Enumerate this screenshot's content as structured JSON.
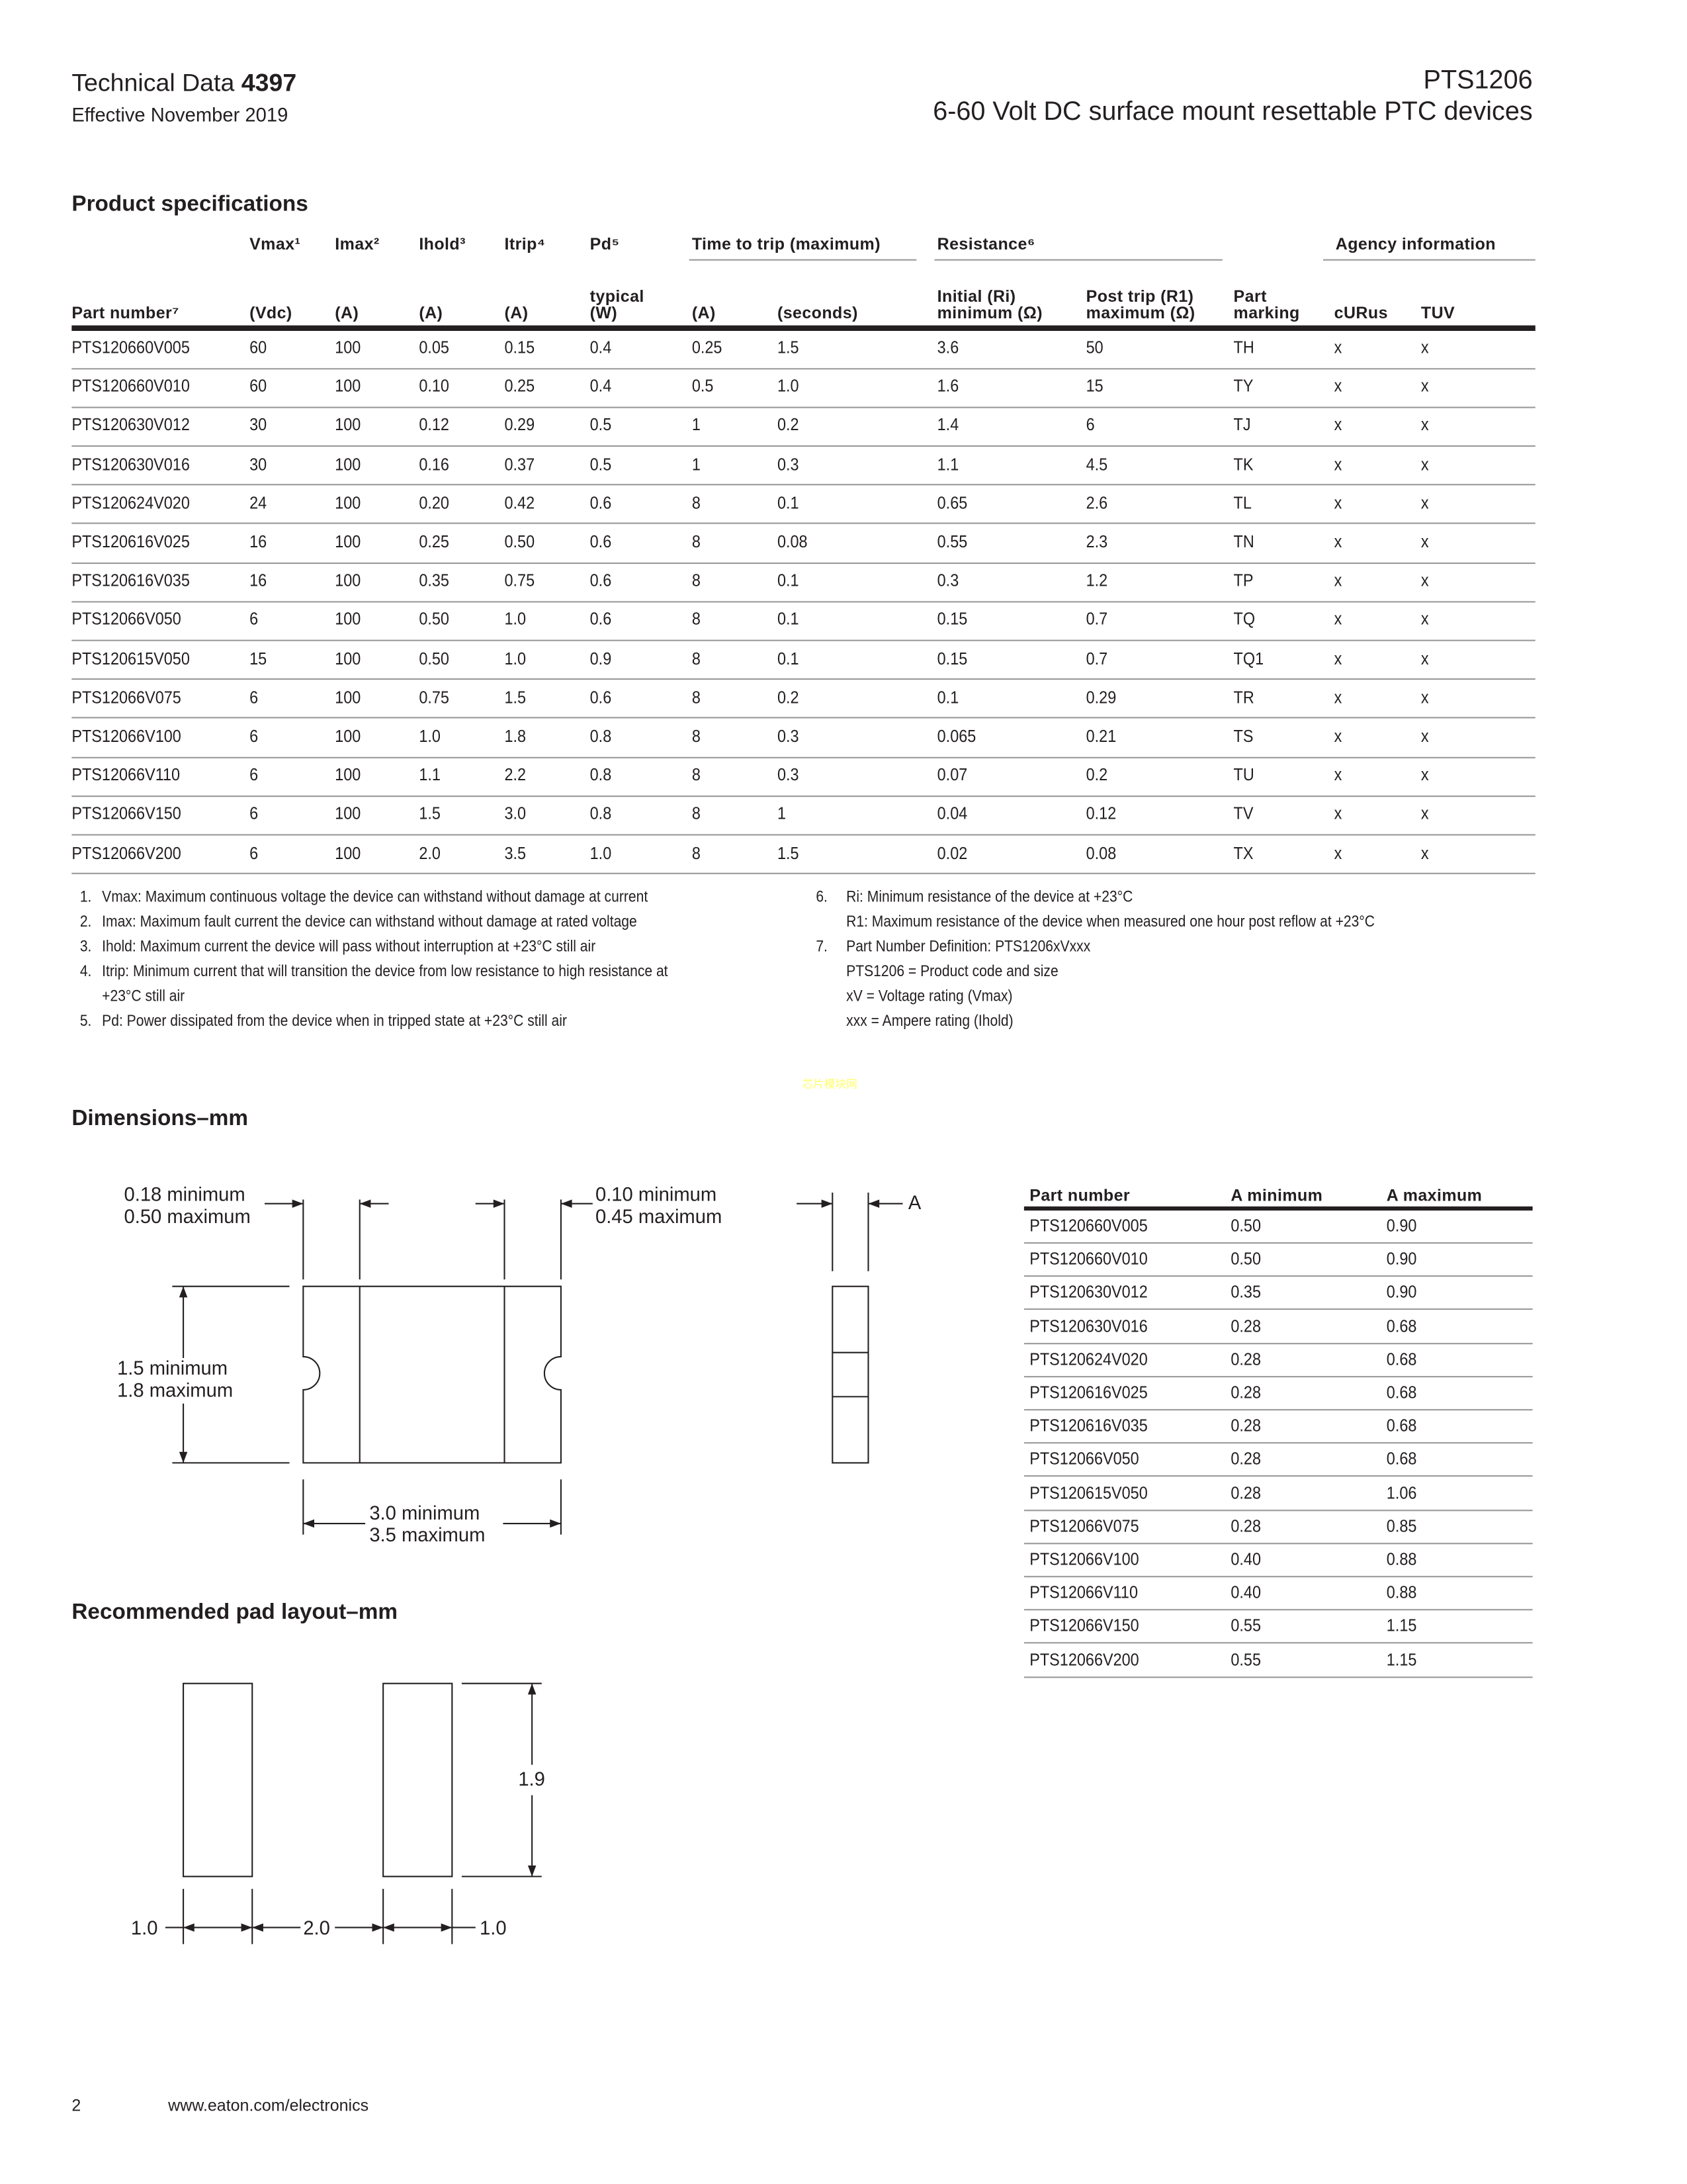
{
  "header": {
    "doc_type": "Technical Data",
    "doc_number": "4397",
    "effective": "Effective November 2019",
    "product": "PTS1206",
    "subtitle": "6-60 Volt DC surface mount resettable PTC devices"
  },
  "specs": {
    "title": "Product specifications",
    "group_headers": {
      "vmax": "Vmax¹",
      "imax": "Imax²",
      "ihold": "Ihold³",
      "itrip": "Itrip⁴",
      "pd": "Pd⁵",
      "time_to_trip": "Time to trip (maximum)",
      "resistance": "Resistance⁶",
      "agency": "Agency information"
    },
    "col_headers": {
      "part": "Part number⁷",
      "vdc": "(Vdc)",
      "imax": "(A)",
      "ihold": "(A)",
      "itrip": "(A)",
      "pd_top": "typical",
      "pd": "(W)",
      "ttt_a": "(A)",
      "ttt_s": "(seconds)",
      "ri_top": "Initial (Ri)",
      "ri": "minimum (Ω)",
      "r1_top": "Post trip (R1)",
      "r1": "maximum (Ω)",
      "mark_top": "Part",
      "mark": "marking",
      "curus": "cURus",
      "tuv": "TUV"
    },
    "rows": [
      [
        "PTS120660V005",
        "60",
        "100",
        "0.05",
        "0.15",
        "0.4",
        "0.25",
        "1.5",
        "3.6",
        "50",
        "TH",
        "x",
        "x"
      ],
      [
        "PTS120660V010",
        "60",
        "100",
        "0.10",
        "0.25",
        "0.4",
        "0.5",
        "1.0",
        "1.6",
        "15",
        "TY",
        "x",
        "x"
      ],
      [
        "PTS120630V012",
        "30",
        "100",
        "0.12",
        "0.29",
        "0.5",
        "1",
        "0.2",
        "1.4",
        "6",
        "TJ",
        "x",
        "x"
      ],
      [
        "PTS120630V016",
        "30",
        "100",
        "0.16",
        "0.37",
        "0.5",
        "1",
        "0.3",
        "1.1",
        "4.5",
        "TK",
        "x",
        "x"
      ],
      [
        "PTS120624V020",
        "24",
        "100",
        "0.20",
        "0.42",
        "0.6",
        "8",
        "0.1",
        "0.65",
        "2.6",
        "TL",
        "x",
        "x"
      ],
      [
        "PTS120616V025",
        "16",
        "100",
        "0.25",
        "0.50",
        "0.6",
        "8",
        "0.08",
        "0.55",
        "2.3",
        "TN",
        "x",
        "x"
      ],
      [
        "PTS120616V035",
        "16",
        "100",
        "0.35",
        "0.75",
        "0.6",
        "8",
        "0.1",
        "0.3",
        "1.2",
        "TP",
        "x",
        "x"
      ],
      [
        "PTS12066V050",
        "6",
        "100",
        "0.50",
        "1.0",
        "0.6",
        "8",
        "0.1",
        "0.15",
        "0.7",
        "TQ",
        "x",
        "x"
      ],
      [
        "PTS120615V050",
        "15",
        "100",
        "0.50",
        "1.0",
        "0.9",
        "8",
        "0.1",
        "0.15",
        "0.7",
        "TQ1",
        "x",
        "x"
      ],
      [
        "PTS12066V075",
        "6",
        "100",
        "0.75",
        "1.5",
        "0.6",
        "8",
        "0.2",
        "0.1",
        "0.29",
        "TR",
        "x",
        "x"
      ],
      [
        "PTS12066V100",
        "6",
        "100",
        "1.0",
        "1.8",
        "0.8",
        "8",
        "0.3",
        "0.065",
        "0.21",
        "TS",
        "x",
        "x"
      ],
      [
        "PTS12066V110",
        "6",
        "100",
        "1.1",
        "2.2",
        "0.8",
        "8",
        "0.3",
        "0.07",
        "0.2",
        "TU",
        "x",
        "x"
      ],
      [
        "PTS12066V150",
        "6",
        "100",
        "1.5",
        "3.0",
        "0.8",
        "8",
        "1",
        "0.04",
        "0.12",
        "TV",
        "x",
        "x"
      ],
      [
        "PTS12066V200",
        "6",
        "100",
        "2.0",
        "3.5",
        "1.0",
        "8",
        "1.5",
        "0.02",
        "0.08",
        "TX",
        "x",
        "x"
      ]
    ],
    "notes_left": [
      {
        "n": "1.",
        "t": "Vmax: Maximum continuous voltage the device can withstand without damage at current"
      },
      {
        "n": "2.",
        "t": "Imax: Maximum fault current the device can withstand without damage at rated voltage"
      },
      {
        "n": "3.",
        "t": "Ihold: Maximum current the device will pass without interruption at +23°C still air"
      },
      {
        "n": "4.",
        "t": "Itrip: Minimum current that will transition the device from low resistance to high resistance at"
      },
      {
        "n": "",
        "t": "+23°C still air"
      },
      {
        "n": "5.",
        "t": "Pd: Power dissipated from the device when in tripped state at +23°C still air"
      }
    ],
    "notes_right": [
      {
        "n": "6.",
        "t": "Ri: Minimum resistance of the device at +23°C"
      },
      {
        "n": "",
        "t": "R1: Maximum resistance of the device when measured one hour post reflow at +23°C"
      },
      {
        "n": "7.",
        "t": "Part Number Definition: PTS1206xVxxx"
      },
      {
        "n": "",
        "t": "PTS1206 = Product code and size"
      },
      {
        "n": "",
        "t": "xV = Voltage rating (Vmax)"
      },
      {
        "n": "",
        "t": "xxx = Ampere rating (Ihold)"
      }
    ]
  },
  "watermark": "芯片模块网",
  "dimensions": {
    "title": "Dimensions–mm",
    "end_min": "0.18 minimum",
    "end_max": "0.50 maximum",
    "gap_min": "0.10 minimum",
    "gap_max": "0.45 maximum",
    "a_label": "A",
    "width_min": "1.5 minimum",
    "width_max": "1.8 maximum",
    "len_min": "3.0 minimum",
    "len_max": "3.5 maximum"
  },
  "a_table": {
    "headers": [
      "Part number",
      "A minimum",
      "A maximum"
    ],
    "rows": [
      [
        "PTS120660V005",
        "0.50",
        "0.90"
      ],
      [
        "PTS120660V010",
        "0.50",
        "0.90"
      ],
      [
        "PTS120630V012",
        "0.35",
        "0.90"
      ],
      [
        "PTS120630V016",
        "0.28",
        "0.68"
      ],
      [
        "PTS120624V020",
        "0.28",
        "0.68"
      ],
      [
        "PTS120616V025",
        "0.28",
        "0.68"
      ],
      [
        "PTS120616V035",
        "0.28",
        "0.68"
      ],
      [
        "PTS12066V050",
        "0.28",
        "0.68"
      ],
      [
        "PTS120615V050",
        "0.28",
        "1.06"
      ],
      [
        "PTS12066V075",
        "0.28",
        "0.85"
      ],
      [
        "PTS12066V100",
        "0.40",
        "0.88"
      ],
      [
        "PTS12066V110",
        "0.40",
        "0.88"
      ],
      [
        "PTS12066V150",
        "0.55",
        "1.15"
      ],
      [
        "PTS12066V200",
        "0.55",
        "1.15"
      ]
    ]
  },
  "pad": {
    "title": "Recommended pad layout–mm",
    "height": "1.9",
    "left": "1.0",
    "gap": "2.0",
    "right": "1.0"
  },
  "footer": {
    "page": "2",
    "url": "www.eaton.com/electronics"
  }
}
